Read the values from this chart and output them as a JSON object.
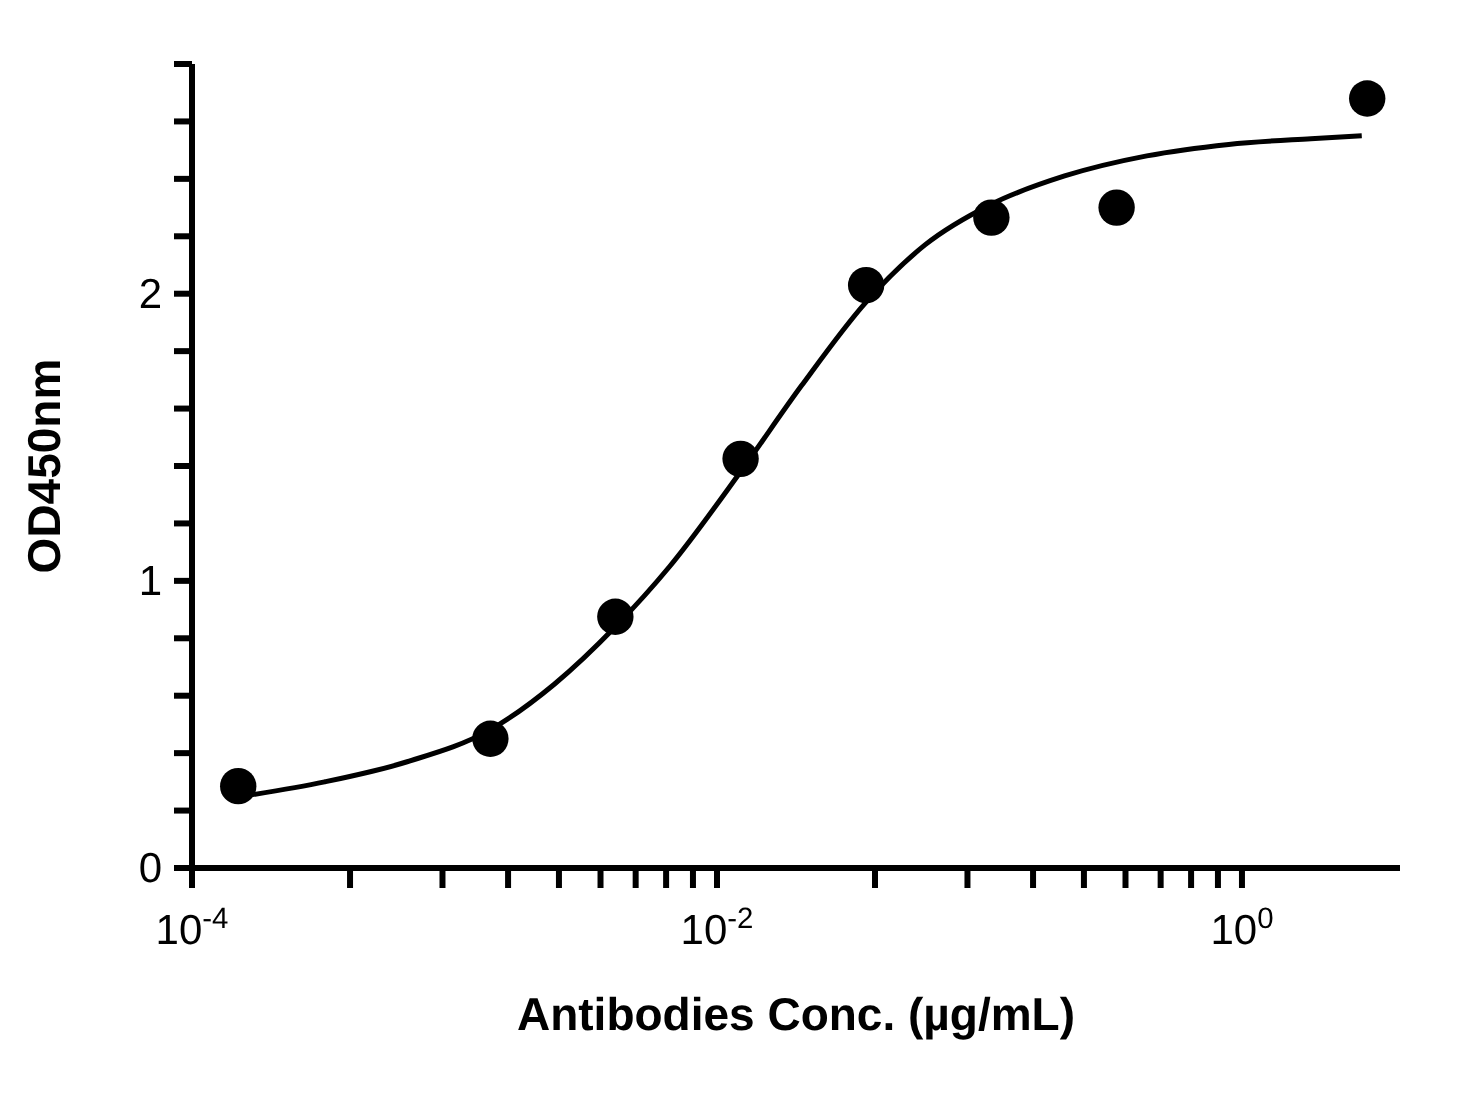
{
  "chart_data": {
    "type": "scatter",
    "xlabel": "Antibodies Conc. (µg/mL)",
    "ylabel": "OD450nm",
    "log": "x",
    "line_style": "solid",
    "xlim": [
      0.0001,
      4
    ],
    "ylim": [
      0,
      2.8
    ],
    "xticks": [
      {
        "value": 0.0001,
        "label": "10$^{-4}$"
      },
      {
        "value": 0.0004,
        "label": null
      },
      {
        "value": 0.0009,
        "label": null
      },
      {
        "value": 0.0016,
        "label": null
      },
      {
        "value": 0.0025,
        "label": null
      },
      {
        "value": 0.0036,
        "label": null
      },
      {
        "value": 0.0049,
        "label": null
      },
      {
        "value": 0.0064,
        "label": null
      },
      {
        "value": 0.0081,
        "label": null
      },
      {
        "value": 0.01,
        "label": "10$^{-2}$"
      },
      {
        "value": 0.04,
        "label": null
      },
      {
        "value": 0.09,
        "label": null
      },
      {
        "value": 0.16,
        "label": null
      },
      {
        "value": 0.25,
        "label": null
      },
      {
        "value": 0.36,
        "label": null
      },
      {
        "value": 0.49,
        "label": null
      },
      {
        "value": 0.64,
        "label": null
      },
      {
        "value": 0.81,
        "label": null
      },
      {
        "value": 1,
        "label": "10$^{0}$"
      }
    ],
    "yticks": [
      0,
      {
        "value": 0.2,
        "label": null
      },
      {
        "value": 0.4,
        "label": null
      },
      {
        "value": 0.6,
        "label": null
      },
      {
        "value": 0.8,
        "label": null
      },
      1,
      {
        "value": 1.2,
        "label": null
      },
      {
        "value": 1.4,
        "label": null
      },
      {
        "value": 1.6,
        "label": null
      },
      {
        "value": 1.8,
        "label": null
      },
      2,
      {
        "value": 2.2,
        "label": null
      },
      {
        "value": 2.4,
        "label": null
      },
      {
        "value": 2.6,
        "label": null
      },
      {
        "value": 2.8,
        "label": null
      }
    ],
    "series": [
      {
        "marker": "circle",
        "color": "#000000",
        "x": [
          0.00015,
          0.00137,
          0.0041,
          0.0123,
          0.037,
          0.111,
          0.333,
          3
        ],
        "values": [
          0.285,
          0.45,
          0.875,
          1.425,
          2.03,
          2.265,
          2.3,
          2.68
        ]
      },
      {
        "type": "line",
        "color": "#000000",
        "x": [
          0.000156,
          0.00032,
          0.00066,
          0.00136,
          0.0024,
          0.0041,
          0.0066,
          0.0123,
          0.021,
          0.0369,
          0.062,
          0.11,
          0.211,
          0.434,
          0.89,
          1.83,
          2.86
        ],
        "values": [
          0.25,
          0.3,
          0.37,
          0.48,
          0.64,
          0.84,
          1.05,
          1.38,
          1.68,
          1.97,
          2.17,
          2.31,
          2.41,
          2.48,
          2.52,
          2.54,
          2.55
        ]
      }
    ]
  }
}
